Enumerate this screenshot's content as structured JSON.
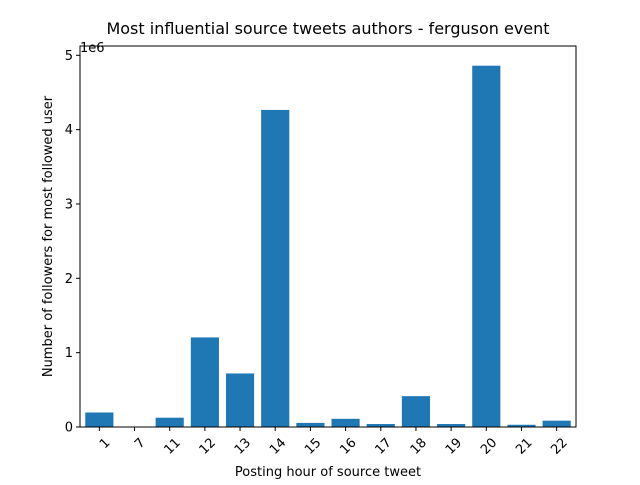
{
  "chart_data": {
    "type": "bar",
    "title": "Most influential source tweets authors - ferguson event",
    "xlabel": "Posting hour of source tweet",
    "ylabel": "Number of followers for most followed user",
    "offset_label": "1e6",
    "categories": [
      "1",
      "7",
      "11",
      "12",
      "13",
      "14",
      "15",
      "16",
      "17",
      "18",
      "19",
      "20",
      "21",
      "22"
    ],
    "values": [
      195000,
      2000,
      125000,
      1205000,
      720000,
      4265000,
      55000,
      110000,
      40000,
      415000,
      40000,
      4860000,
      30000,
      85000
    ],
    "ylim": [
      0,
      5125000
    ],
    "yticks": [
      0,
      1000000,
      2000000,
      3000000,
      4000000,
      5000000
    ],
    "ytick_labels": [
      "0",
      "1",
      "2",
      "3",
      "4",
      "5"
    ],
    "bar_color": "#1f77b4",
    "grid": false,
    "legend": "none"
  }
}
